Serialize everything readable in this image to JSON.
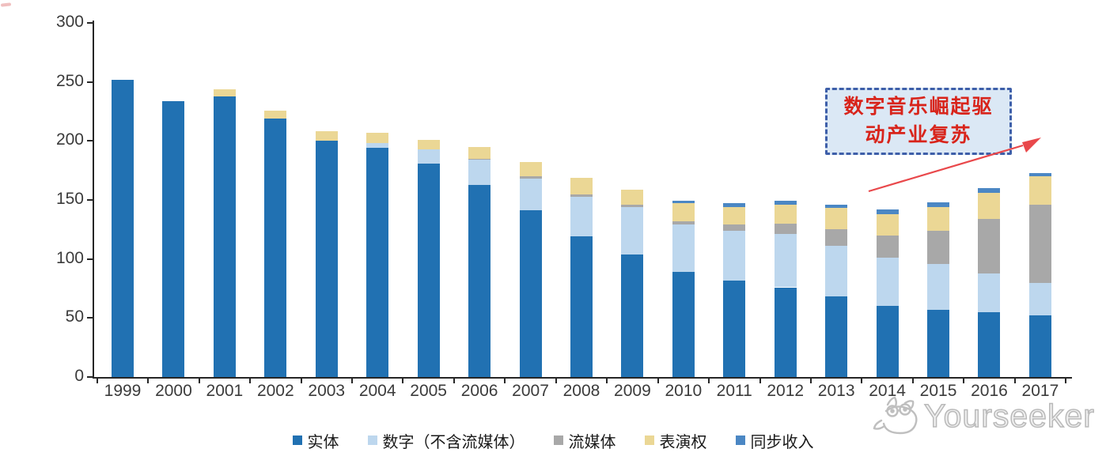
{
  "page": {
    "background": "#ffffff"
  },
  "watermark": {
    "text": "Yourseeker",
    "logo_icon": "cat-glasses-logo",
    "color": "#bdbdbd"
  },
  "annotation": {
    "line1": "数字音乐崛起驱",
    "line2": "动产业复苏",
    "text_color": "#d8241b",
    "box_fill": "#dbe8f5",
    "box_border_color": "#3e5fa9",
    "arrow_color": "#e9484b"
  },
  "chart_data": {
    "type": "bar",
    "stacked": true,
    "title": "",
    "xlabel": "",
    "ylabel": "",
    "categories": [
      "1999",
      "2000",
      "2001",
      "2002",
      "2003",
      "2004",
      "2005",
      "2006",
      "2007",
      "2008",
      "2009",
      "2010",
      "2011",
      "2012",
      "2013",
      "2014",
      "2015",
      "2016",
      "2017"
    ],
    "series": [
      {
        "name": "实体",
        "color": "#2171b2",
        "values": [
          252,
          234,
          238,
          219,
          200,
          194,
          181,
          163,
          141,
          119,
          104,
          89,
          82,
          76,
          68,
          60,
          57,
          55,
          52
        ]
      },
      {
        "name": "数字（不含流媒体）",
        "color": "#bdd7ee",
        "values": [
          0,
          0,
          0,
          0,
          0,
          4,
          12,
          21,
          27,
          34,
          40,
          40,
          42,
          45,
          43,
          41,
          39,
          33,
          28
        ]
      },
      {
        "name": "流媒体",
        "color": "#a8a8a8",
        "values": [
          0,
          0,
          0,
          0,
          0,
          0,
          0,
          1,
          2,
          2,
          2,
          3,
          5,
          9,
          14,
          19,
          28,
          46,
          66
        ]
      },
      {
        "name": "表演权",
        "color": "#ebd795",
        "values": [
          0,
          0,
          6,
          7,
          8,
          9,
          8,
          10,
          12,
          14,
          13,
          15,
          15,
          16,
          18,
          18,
          20,
          22,
          24
        ]
      },
      {
        "name": "同步收入",
        "color": "#4b87c4",
        "values": [
          0,
          0,
          0,
          0,
          0,
          0,
          0,
          0,
          0,
          0,
          0,
          2,
          3,
          3,
          3,
          4,
          4,
          4,
          3
        ]
      }
    ],
    "totals": [
      252,
      234,
      244,
      226,
      208,
      207,
      201,
      195,
      182,
      169,
      159,
      149,
      147,
      149,
      146,
      142,
      148,
      160,
      173
    ],
    "ylim": [
      0,
      300
    ],
    "ytick_step": 50,
    "yticks": [
      "0",
      "50",
      "100",
      "150",
      "200",
      "250",
      "300"
    ],
    "grid": false,
    "legend_position": "bottom",
    "axis_color": "#262626"
  }
}
